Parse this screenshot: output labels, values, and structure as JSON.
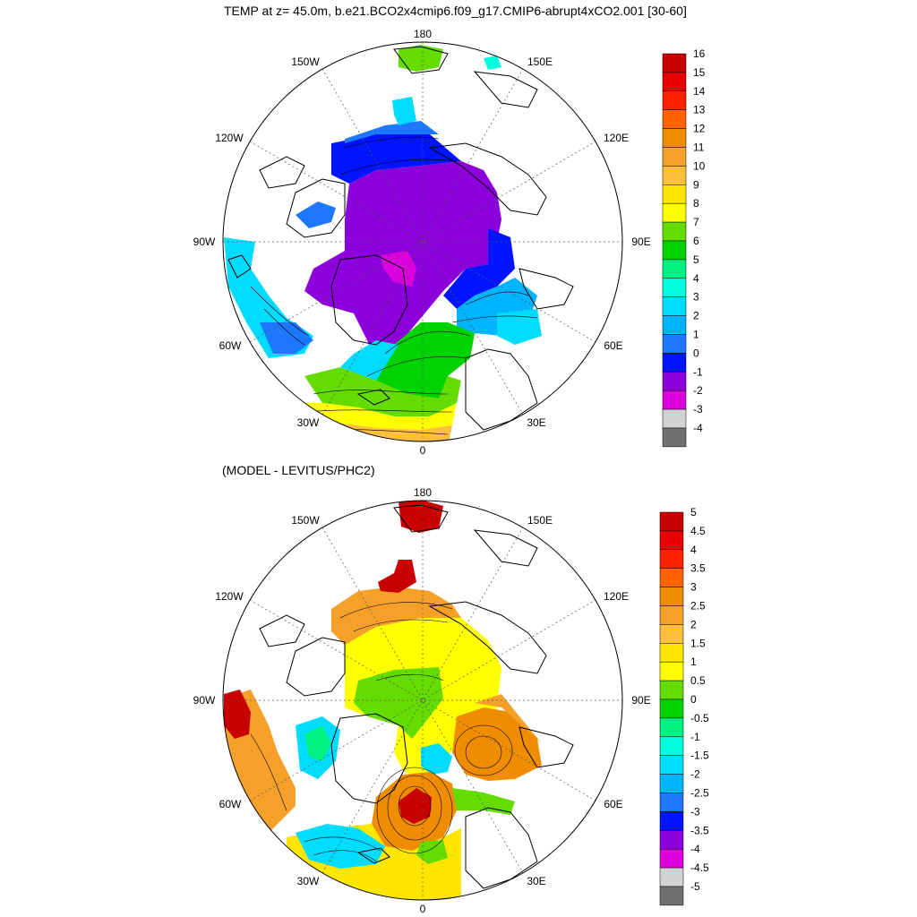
{
  "title": "TEMP at z=  45.0m, b.e21.BCO2x4cmip6.f09_g17.CMIP6-abrupt4xCO2.001 [30-60]",
  "subtitle": "(MODEL - LEVITUS/PHC2)",
  "top_map": {
    "lon_labels": {
      "n": "180",
      "s": "0",
      "e": "90E",
      "w": "90W",
      "nw": "150W",
      "ne": "150E",
      "wnw": "120W",
      "ene": "120E",
      "wsw": "60W",
      "ese": "60E",
      "sw": "30W",
      "se": "30E"
    },
    "legend": {
      "labels": [
        "16",
        "15",
        "14",
        "13",
        "12",
        "11",
        "10",
        "9",
        "8",
        "7",
        "6",
        "5",
        "4",
        "3",
        "2",
        "1",
        "0",
        "-1",
        "-2",
        "-3",
        "-4"
      ],
      "colors": [
        "#c80000",
        "#e60000",
        "#ff2000",
        "#ff6400",
        "#f08c00",
        "#f5a028",
        "#ffbe3c",
        "#ffe600",
        "#ffff00",
        "#64dc00",
        "#00d200",
        "#00f082",
        "#00ffdc",
        "#00dcff",
        "#00b4ff",
        "#1e78ff",
        "#0014ff",
        "#8c00dc",
        "#dc00dc",
        "#d2d2d2",
        "#707070"
      ]
    },
    "fields": {
      "c_warm": "#ffbe3c",
      "c_yellow": "#ffff00",
      "c_green": "#00d200",
      "c_ltgreen": "#64dc00",
      "c_cyan": "#00dcff",
      "c_ltblue": "#00b4ff",
      "c_blue": "#1e78ff",
      "c_dkblue": "#0014ff",
      "c_purple": "#8c00dc",
      "c_magenta": "#dc00dc",
      "c_teal": "#00ffdc"
    }
  },
  "bottom_map": {
    "lon_labels": {
      "n": "180",
      "s": "0",
      "e": "90E",
      "w": "90W",
      "nw": "150W",
      "ne": "150E",
      "wnw": "120W",
      "ene": "120E",
      "wsw": "60W",
      "ese": "60E",
      "sw": "30W",
      "se": "30E"
    },
    "legend": {
      "labels": [
        "5",
        "4.5",
        "4",
        "3.5",
        "3",
        "2.5",
        "2",
        "1.5",
        "1",
        "0.5",
        "0",
        "-0.5",
        "-1",
        "-1.5",
        "-2",
        "-2.5",
        "-3",
        "-3.5",
        "-4",
        "-4.5",
        "-5"
      ],
      "colors": [
        "#c80000",
        "#e60000",
        "#ff2000",
        "#ff6400",
        "#f08c00",
        "#f5a028",
        "#ffbe3c",
        "#ffe600",
        "#ffff00",
        "#64dc00",
        "#00d200",
        "#00f082",
        "#00ffdc",
        "#00dcff",
        "#00b4ff",
        "#1e78ff",
        "#0014ff",
        "#8c00dc",
        "#dc00dc",
        "#d2d2d2",
        "#707070"
      ]
    },
    "fields": {
      "c_orange": "#f5a028",
      "c_yellow": "#ffff00",
      "c_yellow2": "#ffe600",
      "c_green": "#64dc00",
      "c_red": "#c80000",
      "c_cyan": "#00dcff",
      "c_teal": "#00f082",
      "c_blue": "#1e78ff",
      "c_darkorange": "#f08c00"
    }
  }
}
